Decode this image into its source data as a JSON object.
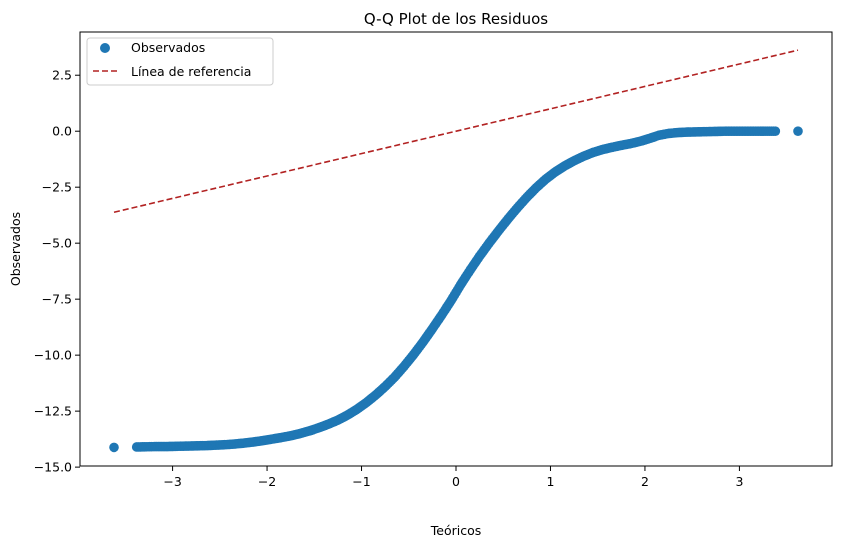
{
  "chart_data": {
    "type": "scatter",
    "title": "Q-Q Plot de los Residuos",
    "xlabel": "Teóricos",
    "ylabel": "Observados",
    "xlim": [
      -3.98,
      3.98
    ],
    "ylim": [
      -14.95,
      4.43
    ],
    "x_ticks": [
      -3,
      -2,
      -1,
      0,
      1,
      2,
      3
    ],
    "x_tick_labels": [
      "−3",
      "−2",
      "−1",
      "0",
      "1",
      "2",
      "3"
    ],
    "y_ticks": [
      -15.0,
      -12.5,
      -10.0,
      -7.5,
      -5.0,
      -2.5,
      0.0,
      2.5
    ],
    "y_tick_labels": [
      "−15.0",
      "−12.5",
      "−10.0",
      "−7.5",
      "−5.0",
      "−2.5",
      "0.0",
      "2.5"
    ],
    "grid": false,
    "legend_position": "upper-left",
    "series": [
      {
        "name": "Observados",
        "kind": "scatter",
        "color": "#1f77b4",
        "points": [
          [
            -3.62,
            -14.12
          ],
          [
            -3.38,
            -14.1
          ],
          [
            -3.26,
            -14.09
          ],
          [
            -3.15,
            -14.08
          ],
          [
            -3.05,
            -14.08
          ],
          [
            -2.95,
            -14.07
          ],
          [
            -2.85,
            -14.06
          ],
          [
            -2.75,
            -14.05
          ],
          [
            -2.65,
            -14.04
          ],
          [
            -2.55,
            -14.02
          ],
          [
            -2.45,
            -14.0
          ],
          [
            -2.35,
            -13.97
          ],
          [
            -2.25,
            -13.93
          ],
          [
            -2.15,
            -13.88
          ],
          [
            -2.05,
            -13.82
          ],
          [
            -1.95,
            -13.75
          ],
          [
            -1.85,
            -13.68
          ],
          [
            -1.75,
            -13.6
          ],
          [
            -1.65,
            -13.5
          ],
          [
            -1.55,
            -13.38
          ],
          [
            -1.45,
            -13.24
          ],
          [
            -1.35,
            -13.08
          ],
          [
            -1.25,
            -12.9
          ],
          [
            -1.15,
            -12.68
          ],
          [
            -1.05,
            -12.42
          ],
          [
            -0.95,
            -12.12
          ],
          [
            -0.85,
            -11.78
          ],
          [
            -0.75,
            -11.4
          ],
          [
            -0.65,
            -10.98
          ],
          [
            -0.55,
            -10.5
          ],
          [
            -0.45,
            -9.98
          ],
          [
            -0.35,
            -9.42
          ],
          [
            -0.25,
            -8.82
          ],
          [
            -0.15,
            -8.2
          ],
          [
            -0.05,
            -7.55
          ],
          [
            0.05,
            -6.85
          ],
          [
            0.15,
            -6.2
          ],
          [
            0.25,
            -5.58
          ],
          [
            0.35,
            -5.0
          ],
          [
            0.45,
            -4.45
          ],
          [
            0.55,
            -3.92
          ],
          [
            0.65,
            -3.42
          ],
          [
            0.75,
            -2.95
          ],
          [
            0.85,
            -2.52
          ],
          [
            0.95,
            -2.14
          ],
          [
            1.05,
            -1.82
          ],
          [
            1.15,
            -1.55
          ],
          [
            1.25,
            -1.32
          ],
          [
            1.35,
            -1.12
          ],
          [
            1.45,
            -0.95
          ],
          [
            1.55,
            -0.82
          ],
          [
            1.65,
            -0.72
          ],
          [
            1.75,
            -0.63
          ],
          [
            1.85,
            -0.55
          ],
          [
            1.95,
            -0.45
          ],
          [
            2.05,
            -0.32
          ],
          [
            2.15,
            -0.18
          ],
          [
            2.25,
            -0.1
          ],
          [
            2.35,
            -0.06
          ],
          [
            2.45,
            -0.04
          ],
          [
            2.55,
            -0.03
          ],
          [
            2.65,
            -0.02
          ],
          [
            2.75,
            -0.01
          ],
          [
            2.85,
            0.0
          ],
          [
            2.95,
            0.0
          ],
          [
            3.05,
            0.0
          ],
          [
            3.15,
            0.0
          ],
          [
            3.26,
            0.0
          ],
          [
            3.38,
            0.0
          ],
          [
            3.62,
            0.0
          ]
        ]
      },
      {
        "name": "Línea de referencia",
        "kind": "line",
        "style": "dashed",
        "color": "#b22222",
        "x": [
          -3.62,
          3.62
        ],
        "y": [
          -3.62,
          3.62
        ]
      }
    ]
  }
}
